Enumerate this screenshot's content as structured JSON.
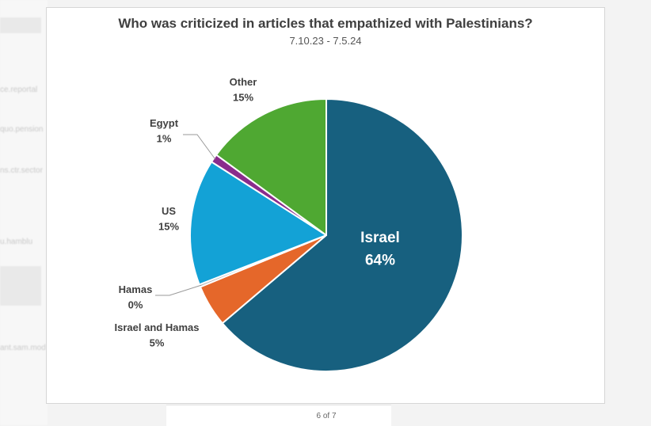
{
  "viewer": {
    "page_indicator": "6 of 7"
  },
  "chart_data": {
    "type": "pie",
    "title": "Who was criticized in articles that empathized with Palestinians?",
    "subtitle": "7.10.23 - 7.5.24",
    "start_angle_deg": 0,
    "direction": "clockwise",
    "slices": [
      {
        "label": "Israel",
        "value": 64,
        "display": "64%",
        "color": "#17607f",
        "label_position": "inside"
      },
      {
        "label": "Israel and Hamas",
        "value": 5,
        "display": "5%",
        "color": "#e5672a",
        "label_position": "outside"
      },
      {
        "label": "Hamas",
        "value": 0.3,
        "display": "0%",
        "color": "#b8b8b8",
        "label_position": "outside"
      },
      {
        "label": "US",
        "value": 15,
        "display": "15%",
        "color": "#13a2d6",
        "label_position": "outside"
      },
      {
        "label": "Egypt",
        "value": 1,
        "display": "1%",
        "color": "#8a2c8c",
        "label_position": "outside"
      },
      {
        "label": "Other",
        "value": 15,
        "display": "15%",
        "color": "#4fa832",
        "label_position": "outside"
      }
    ]
  }
}
